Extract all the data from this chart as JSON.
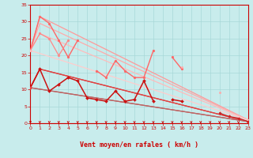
{
  "xlabel": "Vent moyen/en rafales ( km/h )",
  "xlim": [
    0,
    23
  ],
  "ylim": [
    0,
    35
  ],
  "yticks": [
    0,
    5,
    10,
    15,
    20,
    25,
    30,
    35
  ],
  "xticks": [
    0,
    1,
    2,
    3,
    4,
    5,
    6,
    7,
    8,
    9,
    10,
    11,
    12,
    13,
    14,
    15,
    16,
    17,
    18,
    19,
    20,
    21,
    22,
    23
  ],
  "background_color": "#c8ecec",
  "grid_color": "#a8d8d8",
  "envelope_lines": [
    {
      "x": [
        0,
        1,
        23
      ],
      "y": [
        21.5,
        31.5,
        1.0
      ],
      "color": "#ff9999",
      "lw": 0.9
    },
    {
      "x": [
        0,
        1,
        23
      ],
      "y": [
        21.5,
        29.5,
        1.0
      ],
      "color": "#ffaaaa",
      "lw": 0.9
    },
    {
      "x": [
        0,
        1,
        23
      ],
      "y": [
        21.5,
        26.5,
        1.0
      ],
      "color": "#ffbbbb",
      "lw": 0.9
    },
    {
      "x": [
        0,
        23
      ],
      "y": [
        21.5,
        1.0
      ],
      "color": "#ffcccc",
      "lw": 0.9
    },
    {
      "x": [
        0,
        1,
        23
      ],
      "y": [
        10.5,
        16.0,
        0.5
      ],
      "color": "#ee3333",
      "lw": 0.9
    },
    {
      "x": [
        0,
        1,
        23
      ],
      "y": [
        10.5,
        16.0,
        0.5
      ],
      "color": "#dd4444",
      "lw": 0.9
    },
    {
      "x": [
        0,
        23
      ],
      "y": [
        10.5,
        0.5
      ],
      "color": "#cc5555",
      "lw": 0.9
    },
    {
      "x": [
        0,
        23
      ],
      "y": [
        10.5,
        0.5
      ],
      "color": "#bb6666",
      "lw": 0.9
    }
  ],
  "data_series": [
    {
      "color": "#ff6666",
      "lw": 1.0,
      "marker": "o",
      "ms": 2.0,
      "y": [
        21.5,
        31.5,
        29.5,
        24.5,
        19.5,
        24.5,
        null,
        15.5,
        13.5,
        18.5,
        15.5,
        13.5,
        13.5,
        21.5,
        null,
        19.5,
        16.0,
        null,
        null,
        null,
        null,
        null,
        null,
        null
      ]
    },
    {
      "color": "#ff8888",
      "lw": 0.9,
      "marker": "o",
      "ms": 2.0,
      "y": [
        21.5,
        26.5,
        25.0,
        20.0,
        24.5,
        null,
        null,
        null,
        null,
        null,
        null,
        null,
        null,
        null,
        null,
        null,
        null,
        null,
        null,
        null,
        null,
        null,
        null,
        null
      ]
    },
    {
      "color": "#ffaaaa",
      "lw": 0.9,
      "marker": "o",
      "ms": 1.8,
      "y": [
        21.5,
        null,
        null,
        null,
        null,
        null,
        null,
        null,
        null,
        null,
        null,
        null,
        null,
        null,
        null,
        null,
        16.5,
        null,
        null,
        null,
        9.0,
        null,
        null,
        1.0
      ]
    },
    {
      "color": "#ffbbbb",
      "lw": 0.9,
      "marker": "o",
      "ms": 1.8,
      "y": [
        21.5,
        null,
        null,
        null,
        null,
        null,
        null,
        null,
        null,
        null,
        null,
        null,
        null,
        null,
        null,
        null,
        null,
        null,
        null,
        null,
        null,
        null,
        null,
        1.0
      ]
    },
    {
      "color": "#cc1111",
      "lw": 1.1,
      "marker": "D",
      "ms": 2.0,
      "y": [
        10.5,
        16.0,
        9.5,
        11.5,
        13.5,
        12.5,
        7.5,
        7.0,
        6.5,
        9.5,
        6.5,
        7.0,
        12.5,
        6.5,
        null,
        7.0,
        6.5,
        null,
        null,
        null,
        null,
        null,
        null,
        null
      ]
    },
    {
      "color": "#cc2222",
      "lw": 0.9,
      "marker": "D",
      "ms": 1.8,
      "y": [
        10.5,
        null,
        null,
        null,
        null,
        null,
        null,
        null,
        null,
        null,
        null,
        null,
        null,
        null,
        null,
        null,
        null,
        null,
        null,
        null,
        3.0,
        2.0,
        1.5,
        0.5
      ]
    },
    {
      "color": "#dd3333",
      "lw": 0.9,
      "marker": "D",
      "ms": 1.8,
      "y": [
        10.5,
        null,
        null,
        null,
        null,
        null,
        null,
        null,
        null,
        null,
        null,
        null,
        null,
        null,
        null,
        null,
        null,
        null,
        null,
        null,
        null,
        null,
        null,
        0.5
      ]
    },
    {
      "color": "#ee4444",
      "lw": 0.9,
      "marker": "D",
      "ms": 1.8,
      "y": [
        10.5,
        null,
        null,
        null,
        null,
        null,
        null,
        null,
        null,
        null,
        null,
        null,
        null,
        null,
        null,
        null,
        null,
        null,
        null,
        null,
        null,
        null,
        null,
        0.5
      ]
    }
  ]
}
